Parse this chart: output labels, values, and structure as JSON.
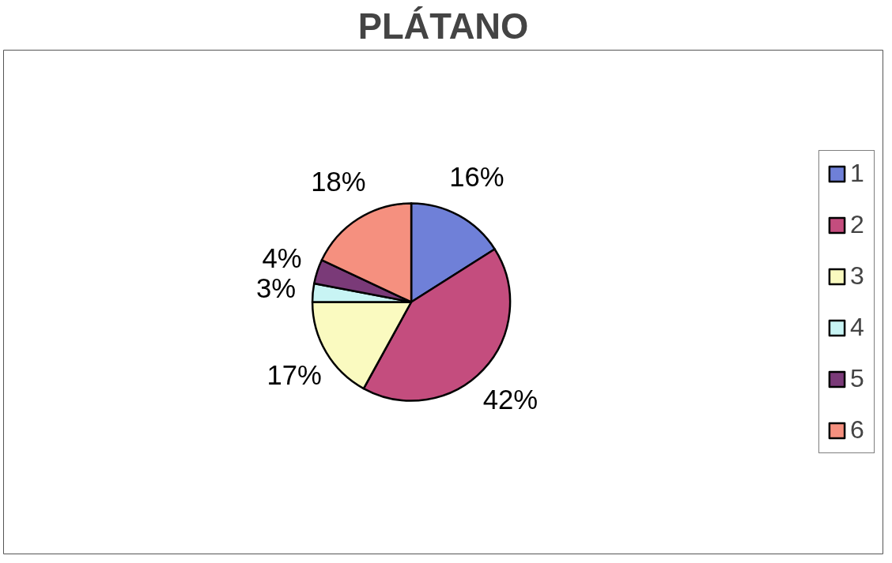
{
  "chart_data": {
    "type": "pie",
    "title": "PLÁTANO",
    "categories": [
      "1",
      "2",
      "3",
      "4",
      "5",
      "6"
    ],
    "values": [
      16,
      42,
      17,
      3,
      4,
      18
    ],
    "value_labels": [
      "16%",
      "42%",
      "17%",
      "3%",
      "4%",
      "18%"
    ],
    "colors": [
      "#6f80d8",
      "#c44d7e",
      "#fafac0",
      "#c8f4f4",
      "#7a3a78",
      "#f5907f"
    ],
    "legend": "right"
  }
}
